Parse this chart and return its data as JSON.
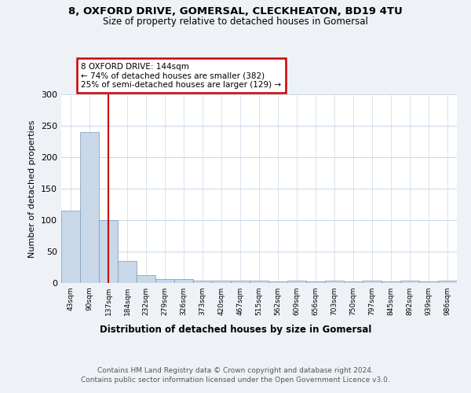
{
  "title1": "8, OXFORD DRIVE, GOMERSAL, CLECKHEATON, BD19 4TU",
  "title2": "Size of property relative to detached houses in Gomersal",
  "xlabel": "Distribution of detached houses by size in Gomersal",
  "ylabel": "Number of detached properties",
  "categories": [
    "43sqm",
    "90sqm",
    "137sqm",
    "184sqm",
    "232sqm",
    "279sqm",
    "326sqm",
    "373sqm",
    "420sqm",
    "467sqm",
    "515sqm",
    "562sqm",
    "609sqm",
    "656sqm",
    "703sqm",
    "750sqm",
    "797sqm",
    "845sqm",
    "892sqm",
    "939sqm",
    "986sqm"
  ],
  "values": [
    115,
    240,
    100,
    35,
    13,
    6,
    6,
    4,
    4,
    4,
    4,
    2,
    4,
    2,
    4,
    2,
    4,
    2,
    4,
    2,
    4
  ],
  "bar_color": "#c8d8e8",
  "bar_edge_color": "#7799bb",
  "highlight_index": 2,
  "highlight_line_color": "#cc0000",
  "annotation_text": "8 OXFORD DRIVE: 144sqm\n← 74% of detached houses are smaller (382)\n25% of semi-detached houses are larger (129) →",
  "annotation_box_color": "#ffffff",
  "annotation_box_edge_color": "#cc0000",
  "footer1": "Contains HM Land Registry data © Crown copyright and database right 2024.",
  "footer2": "Contains public sector information licensed under the Open Government Licence v3.0.",
  "ylim": [
    0,
    300
  ],
  "yticks": [
    0,
    50,
    100,
    150,
    200,
    250,
    300
  ],
  "bg_color": "#eef2f7",
  "plot_bg_color": "#ffffff",
  "grid_color": "#c8d8e8"
}
